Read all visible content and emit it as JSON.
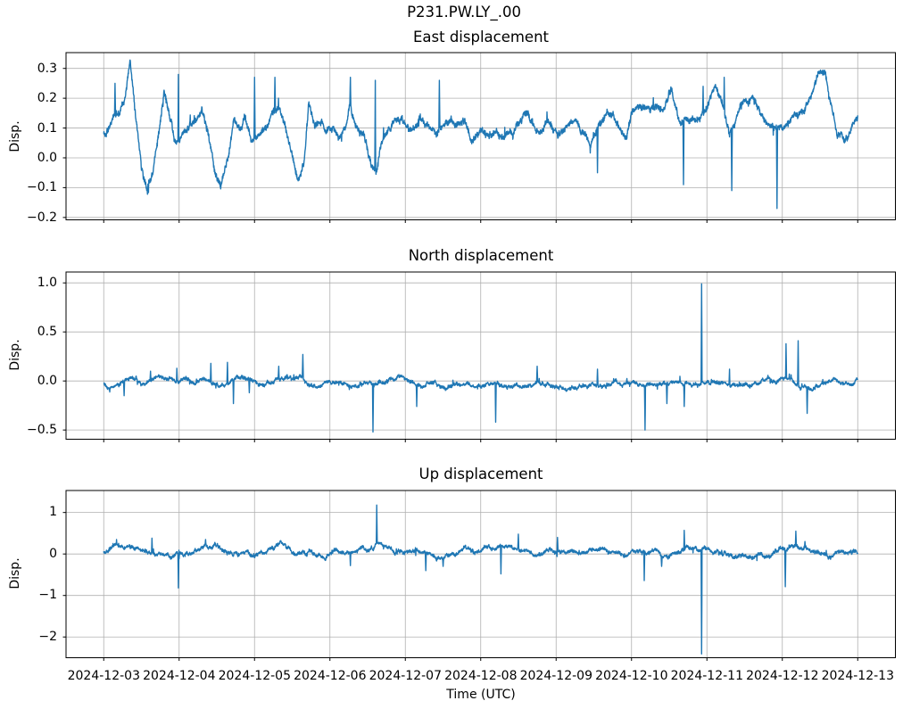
{
  "figure": {
    "suptitle": "P231.PW.LY_.00",
    "xlabel": "Time (UTC)",
    "background": "#ffffff",
    "line_color": "#1f77b4",
    "grid_color": "#b0b0b0",
    "text_color": "#000000",
    "xtick_labels": [
      "2024-12-03",
      "2024-12-04",
      "2024-12-05",
      "2024-12-06",
      "2024-12-07",
      "2024-12-08",
      "2024-12-09",
      "2024-12-10",
      "2024-12-11",
      "2024-12-12",
      "2024-12-13"
    ],
    "xtick_days": [
      0,
      1,
      2,
      3,
      4,
      5,
      6,
      7,
      8,
      9,
      10
    ],
    "xlim_days": [
      -0.5,
      10.5
    ]
  },
  "chart_data": [
    {
      "type": "line",
      "name": "east",
      "title": "East displacement",
      "ylabel": "Disp.",
      "x_unit": "days since 2024-12-03 00:00 UTC",
      "xlim": [
        -0.5,
        10.5
      ],
      "ylim": [
        -0.208,
        0.353
      ],
      "ytick_values": [
        0.3,
        0.2,
        0.1,
        0.0,
        -0.1,
        -0.2
      ],
      "ytick_labels": [
        "0.3",
        "0.2",
        "0.1",
        "0.0",
        "−0.1",
        "−0.2"
      ],
      "grid": true,
      "seed": 11,
      "noise": {
        "slow": 0.01,
        "fast": 0.008
      },
      "keypoints": [
        [
          0.0,
          0.08
        ],
        [
          0.07,
          0.1
        ],
        [
          0.15,
          0.13
        ],
        [
          0.22,
          0.15
        ],
        [
          0.3,
          0.22
        ],
        [
          0.35,
          0.31
        ],
        [
          0.42,
          0.15
        ],
        [
          0.5,
          -0.02
        ],
        [
          0.57,
          -0.09
        ],
        [
          0.65,
          -0.04
        ],
        [
          0.72,
          0.08
        ],
        [
          0.8,
          0.22
        ],
        [
          0.88,
          0.13
        ],
        [
          0.95,
          0.04
        ],
        [
          1.02,
          0.06
        ],
        [
          1.1,
          0.09
        ],
        [
          1.2,
          0.12
        ],
        [
          1.3,
          0.17
        ],
        [
          1.38,
          0.1
        ],
        [
          1.48,
          -0.04
        ],
        [
          1.55,
          -0.09
        ],
        [
          1.65,
          0.0
        ],
        [
          1.73,
          0.12
        ],
        [
          1.8,
          0.09
        ],
        [
          1.88,
          0.13
        ],
        [
          1.95,
          0.05
        ],
        [
          2.05,
          0.07
        ],
        [
          2.15,
          0.09
        ],
        [
          2.25,
          0.16
        ],
        [
          2.32,
          0.17
        ],
        [
          2.4,
          0.12
        ],
        [
          2.48,
          0.03
        ],
        [
          2.58,
          -0.06
        ],
        [
          2.65,
          -0.04
        ],
        [
          2.72,
          0.18
        ],
        [
          2.8,
          0.1
        ],
        [
          2.88,
          0.12
        ],
        [
          2.95,
          0.09
        ],
        [
          3.05,
          0.12
        ],
        [
          3.12,
          0.09
        ],
        [
          3.2,
          0.12
        ],
        [
          3.27,
          0.2
        ],
        [
          3.35,
          0.11
        ],
        [
          3.45,
          0.07
        ],
        [
          3.55,
          -0.02
        ],
        [
          3.62,
          -0.04
        ],
        [
          3.7,
          0.07
        ],
        [
          3.8,
          0.1
        ],
        [
          3.9,
          0.13
        ],
        [
          4.0,
          0.1
        ],
        [
          4.1,
          0.09
        ],
        [
          4.2,
          0.12
        ],
        [
          4.3,
          0.1
        ],
        [
          4.4,
          0.06
        ],
        [
          4.5,
          0.1
        ],
        [
          4.6,
          0.14
        ],
        [
          4.7,
          0.12
        ],
        [
          4.8,
          0.11
        ],
        [
          4.9,
          0.08
        ],
        [
          5.0,
          0.09
        ],
        [
          5.1,
          0.06
        ],
        [
          5.2,
          0.1
        ],
        [
          5.3,
          0.05
        ],
        [
          5.4,
          0.07
        ],
        [
          5.5,
          0.1
        ],
        [
          5.6,
          0.16
        ],
        [
          5.7,
          0.1
        ],
        [
          5.8,
          0.07
        ],
        [
          5.88,
          0.14
        ],
        [
          5.95,
          0.11
        ],
        [
          6.05,
          0.08
        ],
        [
          6.15,
          0.11
        ],
        [
          6.25,
          0.14
        ],
        [
          6.35,
          0.09
        ],
        [
          6.45,
          0.06
        ],
        [
          6.55,
          0.11
        ],
        [
          6.65,
          0.16
        ],
        [
          6.75,
          0.14
        ],
        [
          6.85,
          0.08
        ],
        [
          6.93,
          0.05
        ],
        [
          7.0,
          0.17
        ],
        [
          7.1,
          0.2
        ],
        [
          7.25,
          0.19
        ],
        [
          7.4,
          0.16
        ],
        [
          7.53,
          0.24
        ],
        [
          7.65,
          0.1
        ],
        [
          7.78,
          0.13
        ],
        [
          7.9,
          0.12
        ],
        [
          8.0,
          0.16
        ],
        [
          8.1,
          0.22
        ],
        [
          8.2,
          0.18
        ],
        [
          8.3,
          0.08
        ],
        [
          8.45,
          0.19
        ],
        [
          8.6,
          0.22
        ],
        [
          8.75,
          0.12
        ],
        [
          8.9,
          0.1
        ],
        [
          9.0,
          0.1
        ],
        [
          9.15,
          0.13
        ],
        [
          9.3,
          0.15
        ],
        [
          9.45,
          0.26
        ],
        [
          9.57,
          0.31
        ],
        [
          9.65,
          0.18
        ],
        [
          9.73,
          0.08
        ],
        [
          9.85,
          0.06
        ],
        [
          10.0,
          0.16
        ]
      ],
      "spikes": [
        [
          0.15,
          0.25
        ],
        [
          0.99,
          0.28
        ],
        [
          2.0,
          0.27
        ],
        [
          2.27,
          0.27
        ],
        [
          3.27,
          0.27
        ],
        [
          3.6,
          0.26
        ],
        [
          4.45,
          0.26
        ],
        [
          6.55,
          -0.05
        ],
        [
          7.69,
          -0.09
        ],
        [
          7.95,
          0.24
        ],
        [
          8.23,
          0.27
        ],
        [
          8.33,
          -0.11
        ],
        [
          8.93,
          -0.17
        ]
      ]
    },
    {
      "type": "line",
      "name": "north",
      "title": "North displacement",
      "ylabel": "Disp.",
      "x_unit": "days since 2024-12-03 00:00 UTC",
      "xlim": [
        -0.5,
        10.5
      ],
      "ylim": [
        -0.594,
        1.111
      ],
      "ytick_values": [
        1.0,
        0.5,
        0.0,
        -0.5
      ],
      "ytick_labels": [
        "1.0",
        "0.5",
        "0.0",
        "−0.5"
      ],
      "grid": true,
      "seed": 22,
      "noise": {
        "slow": 0.018,
        "fast": 0.012
      },
      "keypoints": [
        [
          0.0,
          -0.02
        ],
        [
          0.2,
          -0.03
        ],
        [
          0.35,
          0.01
        ],
        [
          0.5,
          -0.04
        ],
        [
          0.65,
          -0.02
        ],
        [
          0.8,
          0.02
        ],
        [
          0.95,
          -0.03
        ],
        [
          1.1,
          0.0
        ],
        [
          1.25,
          0.03
        ],
        [
          1.4,
          0.02
        ],
        [
          1.5,
          -0.02
        ],
        [
          1.6,
          -0.04
        ],
        [
          1.75,
          0.02
        ],
        [
          1.9,
          0.03
        ],
        [
          2.05,
          -0.04
        ],
        [
          2.2,
          -0.02
        ],
        [
          2.3,
          0.02
        ],
        [
          2.45,
          0.04
        ],
        [
          2.6,
          0.02
        ],
        [
          2.7,
          -0.03
        ],
        [
          2.85,
          -0.05
        ],
        [
          3.0,
          -0.03
        ],
        [
          3.15,
          -0.06
        ],
        [
          3.3,
          -0.04
        ],
        [
          3.45,
          -0.02
        ],
        [
          3.6,
          -0.05
        ],
        [
          3.75,
          0.02
        ],
        [
          3.9,
          0.04
        ],
        [
          4.05,
          0.01
        ],
        [
          4.2,
          -0.03
        ],
        [
          4.35,
          -0.02
        ],
        [
          4.5,
          -0.05
        ],
        [
          4.65,
          -0.03
        ],
        [
          4.8,
          -0.04
        ],
        [
          4.95,
          -0.06
        ],
        [
          5.1,
          -0.03
        ],
        [
          5.25,
          -0.05
        ],
        [
          5.4,
          -0.04
        ],
        [
          5.55,
          -0.06
        ],
        [
          5.7,
          -0.03
        ],
        [
          5.85,
          -0.04
        ],
        [
          6.0,
          -0.05
        ],
        [
          6.15,
          -0.07
        ],
        [
          6.3,
          -0.05
        ],
        [
          6.45,
          -0.04
        ],
        [
          6.6,
          -0.03
        ],
        [
          6.75,
          -0.02
        ],
        [
          6.9,
          -0.04
        ],
        [
          7.05,
          -0.03
        ],
        [
          7.2,
          -0.04
        ],
        [
          7.35,
          -0.05
        ],
        [
          7.5,
          -0.03
        ],
        [
          7.65,
          -0.02
        ],
        [
          7.8,
          -0.03
        ],
        [
          7.95,
          -0.02
        ],
        [
          8.1,
          -0.01
        ],
        [
          8.25,
          -0.04
        ],
        [
          8.4,
          -0.06
        ],
        [
          8.55,
          -0.03
        ],
        [
          8.7,
          -0.01
        ],
        [
          8.85,
          0.02
        ],
        [
          9.0,
          0.03
        ],
        [
          9.15,
          -0.01
        ],
        [
          9.3,
          -0.05
        ],
        [
          9.4,
          -0.08
        ],
        [
          9.5,
          -0.03
        ],
        [
          9.6,
          0.01
        ],
        [
          9.75,
          0.02
        ],
        [
          9.9,
          -0.01
        ],
        [
          10.0,
          0.0
        ]
      ],
      "spikes": [
        [
          0.27,
          -0.15
        ],
        [
          0.62,
          0.1
        ],
        [
          0.97,
          0.13
        ],
        [
          1.42,
          0.18
        ],
        [
          1.64,
          0.19
        ],
        [
          1.72,
          -0.23
        ],
        [
          1.93,
          -0.12
        ],
        [
          2.32,
          0.15
        ],
        [
          2.64,
          0.27
        ],
        [
          3.57,
          -0.52
        ],
        [
          4.15,
          -0.26
        ],
        [
          5.2,
          -0.42
        ],
        [
          5.75,
          0.15
        ],
        [
          6.55,
          0.12
        ],
        [
          7.18,
          -0.5
        ],
        [
          7.47,
          -0.23
        ],
        [
          7.7,
          -0.26
        ],
        [
          7.93,
          0.99
        ],
        [
          8.3,
          0.12
        ],
        [
          9.05,
          0.38
        ],
        [
          9.21,
          0.41
        ],
        [
          9.33,
          -0.33
        ]
      ]
    },
    {
      "type": "line",
      "name": "up",
      "title": "Up displacement",
      "ylabel": "Disp.",
      "x_unit": "days since 2024-12-03 00:00 UTC",
      "xlim": [
        -0.5,
        10.5
      ],
      "ylim": [
        -2.5,
        1.53
      ],
      "ytick_values": [
        1,
        0,
        -1,
        -2
      ],
      "ytick_labels": [
        "1",
        "0",
        "−1",
        "−2"
      ],
      "grid": true,
      "seed": 33,
      "noise": {
        "slow": 0.045,
        "fast": 0.03
      },
      "keypoints": [
        [
          0.0,
          0.05
        ],
        [
          0.15,
          0.1
        ],
        [
          0.35,
          0.22
        ],
        [
          0.5,
          0.1
        ],
        [
          0.65,
          -0.02
        ],
        [
          0.8,
          -0.08
        ],
        [
          0.95,
          0.02
        ],
        [
          1.1,
          0.0
        ],
        [
          1.25,
          0.15
        ],
        [
          1.35,
          0.25
        ],
        [
          1.5,
          0.18
        ],
        [
          1.65,
          0.1
        ],
        [
          1.8,
          -0.02
        ],
        [
          1.95,
          0.0
        ],
        [
          2.1,
          0.02
        ],
        [
          2.25,
          0.1
        ],
        [
          2.35,
          0.25
        ],
        [
          2.5,
          0.05
        ],
        [
          2.6,
          -0.08
        ],
        [
          2.75,
          0.0
        ],
        [
          2.9,
          0.0
        ],
        [
          3.05,
          0.05
        ],
        [
          3.2,
          0.0
        ],
        [
          3.35,
          0.1
        ],
        [
          3.5,
          0.05
        ],
        [
          3.65,
          0.15
        ],
        [
          3.75,
          0.2
        ],
        [
          3.9,
          0.1
        ],
        [
          4.05,
          0.0
        ],
        [
          4.2,
          0.05
        ],
        [
          4.35,
          0.0
        ],
        [
          4.5,
          -0.05
        ],
        [
          4.65,
          0.0
        ],
        [
          4.8,
          0.1
        ],
        [
          4.95,
          0.05
        ],
        [
          5.1,
          0.1
        ],
        [
          5.25,
          0.15
        ],
        [
          5.4,
          0.1
        ],
        [
          5.55,
          0.05
        ],
        [
          5.7,
          0.0
        ],
        [
          5.85,
          0.08
        ],
        [
          6.0,
          0.1
        ],
        [
          6.15,
          0.05
        ],
        [
          6.3,
          0.0
        ],
        [
          6.45,
          0.02
        ],
        [
          6.6,
          0.1
        ],
        [
          6.75,
          0.05
        ],
        [
          6.9,
          -0.05
        ],
        [
          7.05,
          0.02
        ],
        [
          7.2,
          0.0
        ],
        [
          7.35,
          0.05
        ],
        [
          7.5,
          0.02
        ],
        [
          7.65,
          0.08
        ],
        [
          7.8,
          0.12
        ],
        [
          7.95,
          0.05
        ],
        [
          8.1,
          0.0
        ],
        [
          8.25,
          0.02
        ],
        [
          8.4,
          -0.02
        ],
        [
          8.55,
          -0.08
        ],
        [
          8.7,
          0.0
        ],
        [
          8.85,
          0.05
        ],
        [
          9.0,
          0.1
        ],
        [
          9.1,
          0.2
        ],
        [
          9.2,
          0.15
        ],
        [
          9.35,
          0.1
        ],
        [
          9.5,
          0.02
        ],
        [
          9.65,
          -0.02
        ],
        [
          9.8,
          0.02
        ],
        [
          10.0,
          0.05
        ]
      ],
      "spikes": [
        [
          0.64,
          0.38
        ],
        [
          0.99,
          -0.82
        ],
        [
          1.35,
          0.35
        ],
        [
          3.27,
          -0.28
        ],
        [
          3.62,
          1.18
        ],
        [
          4.27,
          -0.4
        ],
        [
          4.5,
          -0.3
        ],
        [
          5.27,
          -0.48
        ],
        [
          5.5,
          0.48
        ],
        [
          6.02,
          0.4
        ],
        [
          7.17,
          -0.64
        ],
        [
          7.4,
          -0.3
        ],
        [
          7.7,
          0.57
        ],
        [
          7.93,
          -2.41
        ],
        [
          9.04,
          -0.79
        ],
        [
          9.18,
          0.55
        ],
        [
          9.3,
          0.3
        ]
      ]
    }
  ]
}
